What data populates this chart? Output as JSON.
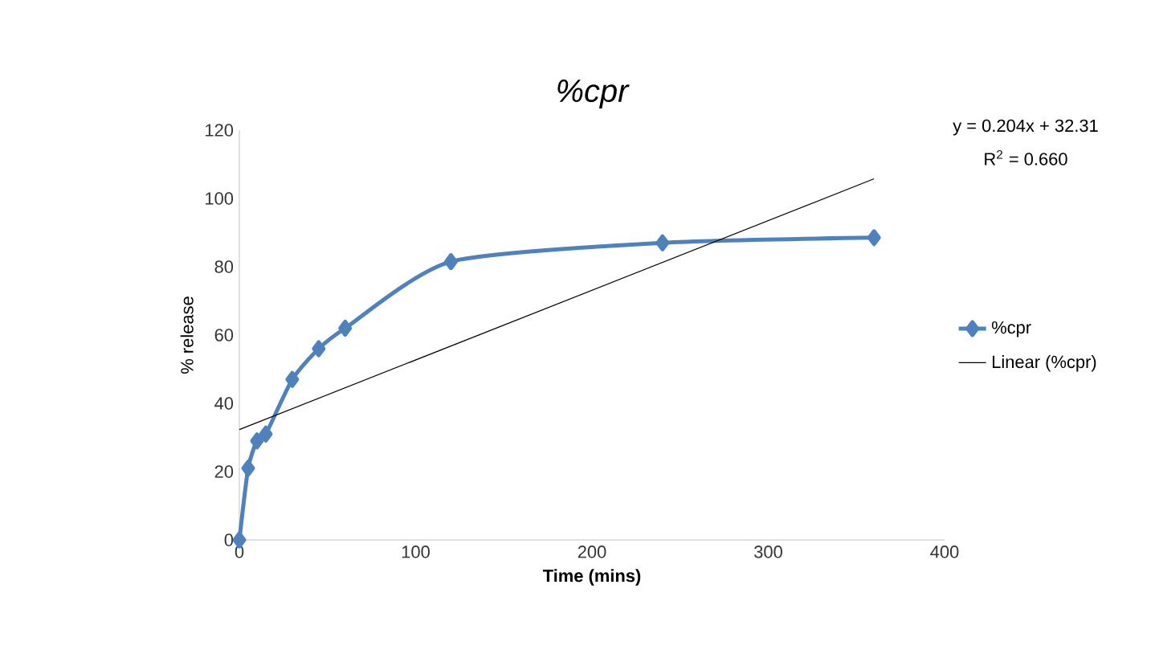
{
  "chart_data": {
    "type": "line",
    "title": "%cpr",
    "xlabel": "Time (mins)",
    "ylabel": "% release",
    "annotations": [
      "y = 0.204x + 32.31",
      "R$^{2}$ = 0.660"
    ],
    "x": [
      0,
      5,
      10,
      15,
      30,
      45,
      60,
      120,
      240,
      360
    ],
    "series": [
      {
        "name": "%cpr",
        "color": "#4f81bd",
        "values": [
          0,
          21,
          29,
          31,
          47,
          56,
          62,
          81.5,
          87,
          88.5
        ]
      },
      {
        "name": "Linear (%cpr)",
        "color": "#000000",
        "type": "line",
        "marker": "none",
        "x": [
          0,
          360
        ],
        "values": [
          32.31,
          105.75
        ]
      }
    ],
    "xlim": [
      0,
      400
    ],
    "xticks": [
      0,
      100,
      200,
      300,
      400
    ],
    "ylim": [
      0,
      120
    ],
    "yticks": [
      0,
      20,
      40,
      60,
      80,
      100,
      120
    ],
    "grid": false,
    "legend": "right",
    "marker": "diamond"
  }
}
